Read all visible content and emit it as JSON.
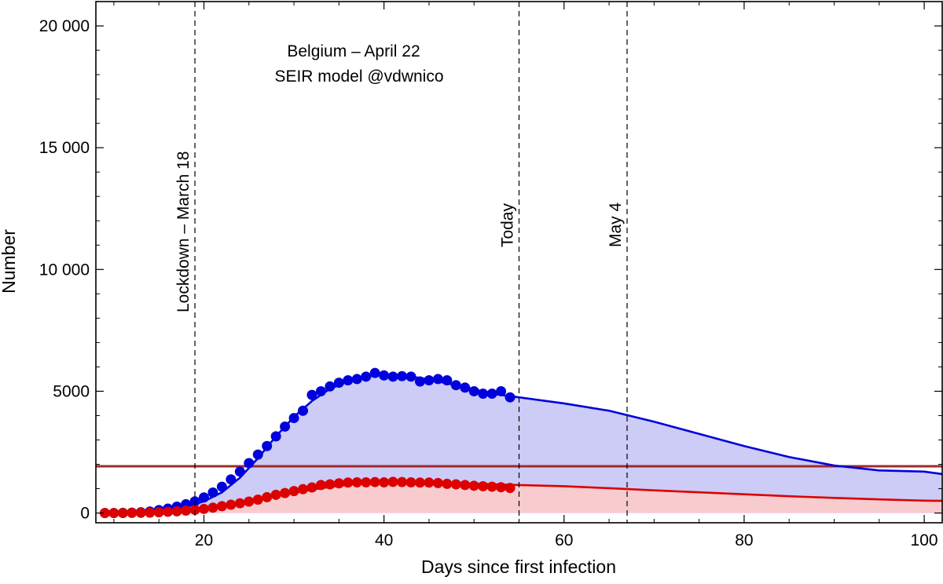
{
  "chart_data": {
    "type": "line",
    "title_lines": [
      "Belgium – April 22",
      "SEIR model @vdwnico"
    ],
    "xlabel": "Days since first infection",
    "ylabel": "Number",
    "xlim": [
      8,
      102
    ],
    "ylim": [
      -400,
      21000
    ],
    "x_ticks": [
      20,
      40,
      60,
      80,
      100
    ],
    "x_tick_labels": [
      "20",
      "40",
      "60",
      "80",
      "100"
    ],
    "y_ticks": [
      0,
      5000,
      10000,
      15000,
      20000
    ],
    "y_tick_labels": [
      "0",
      "5000",
      "10 000",
      "15 000",
      "20 000"
    ],
    "grid": false,
    "colors": {
      "hospitalized": "#0000dd",
      "hospitalized_fill": "#ccccf6",
      "icu": "#dd0000",
      "icu_fill": "#f8cccf",
      "capacity": "#9e2b2b",
      "vlines": "#000000"
    },
    "vertical_lines": [
      {
        "x": 19,
        "label": "Lockdown – March 18"
      },
      {
        "x": 55,
        "label": "Today"
      },
      {
        "x": 67,
        "label": "May 4"
      }
    ],
    "horizontal_line": {
      "y": 1920
    },
    "series": [
      {
        "key": "hospitalized_points",
        "kind": "points",
        "color": "#0000dd",
        "x": [
          9,
          10,
          11,
          12,
          13,
          14,
          15,
          16,
          17,
          18,
          19,
          20,
          21,
          22,
          23,
          24,
          25,
          26,
          27,
          28,
          29,
          30,
          31,
          32,
          33,
          34,
          35,
          36,
          37,
          38,
          39,
          40,
          41,
          42,
          43,
          44,
          45,
          46,
          47,
          48,
          49,
          50,
          51,
          52,
          53,
          54
        ],
        "values": [
          0,
          0,
          5,
          15,
          30,
          60,
          120,
          180,
          260,
          360,
          480,
          640,
          840,
          1080,
          1380,
          1700,
          2050,
          2400,
          2750,
          3150,
          3550,
          3900,
          4200,
          4850,
          5000,
          5200,
          5350,
          5450,
          5500,
          5600,
          5750,
          5650,
          5600,
          5620,
          5600,
          5400,
          5450,
          5500,
          5450,
          5250,
          5150,
          5000,
          4900,
          4900,
          5000,
          4750
        ]
      },
      {
        "key": "icu_points",
        "kind": "points",
        "color": "#dd0000",
        "x": [
          9,
          10,
          11,
          12,
          13,
          14,
          15,
          16,
          17,
          18,
          19,
          20,
          21,
          22,
          23,
          24,
          25,
          26,
          27,
          28,
          29,
          30,
          31,
          32,
          33,
          34,
          35,
          36,
          37,
          38,
          39,
          40,
          41,
          42,
          43,
          44,
          45,
          46,
          47,
          48,
          49,
          50,
          51,
          52,
          53,
          54
        ],
        "values": [
          0,
          0,
          0,
          5,
          10,
          15,
          30,
          50,
          70,
          100,
          130,
          170,
          220,
          280,
          340,
          400,
          470,
          550,
          650,
          750,
          820,
          900,
          980,
          1050,
          1150,
          1180,
          1220,
          1250,
          1260,
          1260,
          1270,
          1260,
          1280,
          1270,
          1260,
          1250,
          1250,
          1230,
          1200,
          1180,
          1150,
          1120,
          1100,
          1080,
          1060,
          1030
        ]
      },
      {
        "key": "hospitalized_model",
        "kind": "curve",
        "fill": true,
        "color": "#0000dd",
        "x": [
          9,
          12,
          15,
          18,
          20,
          22,
          24,
          26,
          28,
          30,
          32,
          34,
          36,
          38,
          40,
          42,
          44,
          46,
          48,
          50,
          52,
          55,
          60,
          65,
          70,
          75,
          80,
          85,
          90,
          95,
          100,
          102
        ],
        "values": [
          0,
          15,
          80,
          250,
          480,
          850,
          1450,
          2250,
          3150,
          3950,
          4600,
          5100,
          5400,
          5600,
          5680,
          5640,
          5550,
          5400,
          5250,
          5080,
          4900,
          4750,
          4500,
          4200,
          3750,
          3250,
          2750,
          2300,
          1950,
          1750,
          1700,
          1600
        ]
      },
      {
        "key": "icu_model",
        "kind": "curve",
        "fill": true,
        "color": "#dd0000",
        "x": [
          9,
          12,
          15,
          18,
          20,
          22,
          24,
          26,
          28,
          30,
          32,
          34,
          36,
          38,
          40,
          42,
          44,
          46,
          48,
          50,
          52,
          55,
          60,
          65,
          70,
          75,
          80,
          85,
          90,
          95,
          100,
          102
        ],
        "values": [
          0,
          5,
          30,
          90,
          160,
          260,
          380,
          520,
          680,
          830,
          960,
          1070,
          1160,
          1220,
          1250,
          1260,
          1255,
          1240,
          1220,
          1200,
          1180,
          1150,
          1100,
          1020,
          930,
          850,
          770,
          690,
          620,
          560,
          510,
          500
        ]
      }
    ]
  }
}
